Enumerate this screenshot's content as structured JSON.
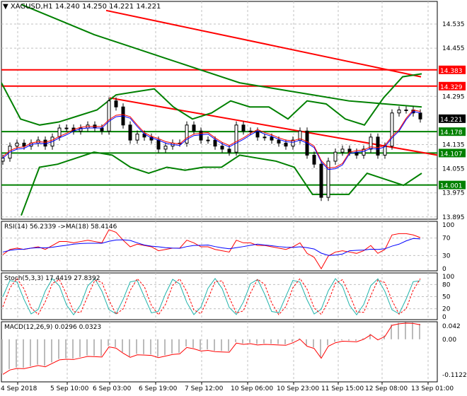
{
  "header": {
    "symbol": "XAGUSD,H1",
    "open": "14.240",
    "high": "14.250",
    "low": "14.221",
    "close": "14.221"
  },
  "colors": {
    "bull": "#000000",
    "grid": "#c0c0c0",
    "ma_green": "#008000",
    "line_red": "#ff0000",
    "rsi_ma": "#0000ff",
    "stoch_main": "#20b2aa",
    "current_price_bg": "#000000"
  },
  "chart_data": [
    {
      "type": "candlestick",
      "symbol": "XAGUSD",
      "timeframe": "H1",
      "ylim": [
        13.895,
        14.575
      ],
      "y_ticks": [
        "14.535",
        "14.455",
        "14.295",
        "14.135",
        "14.055",
        "13.975",
        "13.895"
      ],
      "x_ticks": [
        "4 Sep 2018",
        "5 Sep 10:00",
        "6 Sep 03:00",
        "6 Sep 19:00",
        "7 Sep 12:00",
        "10 Sep 06:00",
        "10 Sep 23:00",
        "11 Sep 15:00",
        "12 Sep 08:00",
        "13 Sep 01:00"
      ],
      "closes": [
        14.09,
        14.13,
        14.14,
        14.13,
        14.14,
        14.15,
        14.13,
        14.16,
        14.19,
        14.19,
        14.18,
        14.19,
        14.2,
        14.19,
        14.18,
        14.28,
        14.26,
        14.2,
        14.15,
        14.17,
        14.16,
        14.15,
        14.12,
        14.13,
        14.14,
        14.14,
        14.2,
        14.18,
        14.15,
        14.15,
        14.13,
        14.12,
        14.11,
        14.2,
        14.18,
        14.18,
        14.16,
        14.16,
        14.15,
        14.14,
        14.13,
        14.15,
        14.18,
        14.1,
        14.07,
        13.96,
        14.08,
        14.11,
        14.12,
        14.11,
        14.1,
        14.12,
        14.16,
        14.1,
        14.13,
        14.24,
        14.25,
        14.25,
        14.24,
        14.22
      ],
      "price_labels": [
        {
          "value": "14.383",
          "color": "#ff0000"
        },
        {
          "value": "14.329",
          "color": "#ff0000"
        },
        {
          "value": "14.221",
          "color": "#000000"
        },
        {
          "value": "14.178",
          "color": "#008000"
        },
        {
          "value": "14.107",
          "color": "#008000"
        },
        {
          "value": "14.001",
          "color": "#008000"
        }
      ],
      "bollinger_upper": [
        14.34,
        14.22,
        14.2,
        14.21,
        14.23,
        14.25,
        14.3,
        14.31,
        14.32,
        14.26,
        14.22,
        14.24,
        14.28,
        14.26,
        14.26,
        14.22,
        14.28,
        14.27,
        14.22,
        14.2,
        14.29,
        14.36,
        14.37
      ],
      "bollinger_lower": [
        13.9,
        14.06,
        14.07,
        14.09,
        14.11,
        14.1,
        14.06,
        14.04,
        14.06,
        14.05,
        14.06,
        14.06,
        14.1,
        14.09,
        14.08,
        14.06,
        13.97,
        13.97,
        13.97,
        14.04,
        14.02,
        14.0,
        14.04
      ],
      "ma_long": [
        14.6,
        14.55,
        14.5,
        14.46,
        14.42,
        14.38,
        14.34,
        14.32,
        14.3,
        14.28,
        14.27,
        14.26
      ],
      "trend_upper": [
        14.58,
        14.36
      ],
      "trend_lower": [
        14.29,
        14.1
      ]
    },
    {
      "type": "line",
      "title": "RSI(14) 56.2339  ->MA(18) 58.4146",
      "y_ticks": [
        "100",
        "70",
        "30",
        "0"
      ],
      "ylim": [
        0,
        100
      ]
    },
    {
      "type": "line",
      "title": "Stoch(5,3,3) 17.4419 27.8392",
      "y_ticks": [
        "100",
        "80",
        "50",
        "20",
        "0"
      ],
      "ylim": [
        0,
        100
      ]
    },
    {
      "type": "bar",
      "title": "MACD(12,26,9) 0.0296 0.0323",
      "y_ticks": [
        "0.042",
        "0.00",
        "-0.1122"
      ],
      "ylim": [
        -0.1122,
        0.042
      ]
    }
  ]
}
